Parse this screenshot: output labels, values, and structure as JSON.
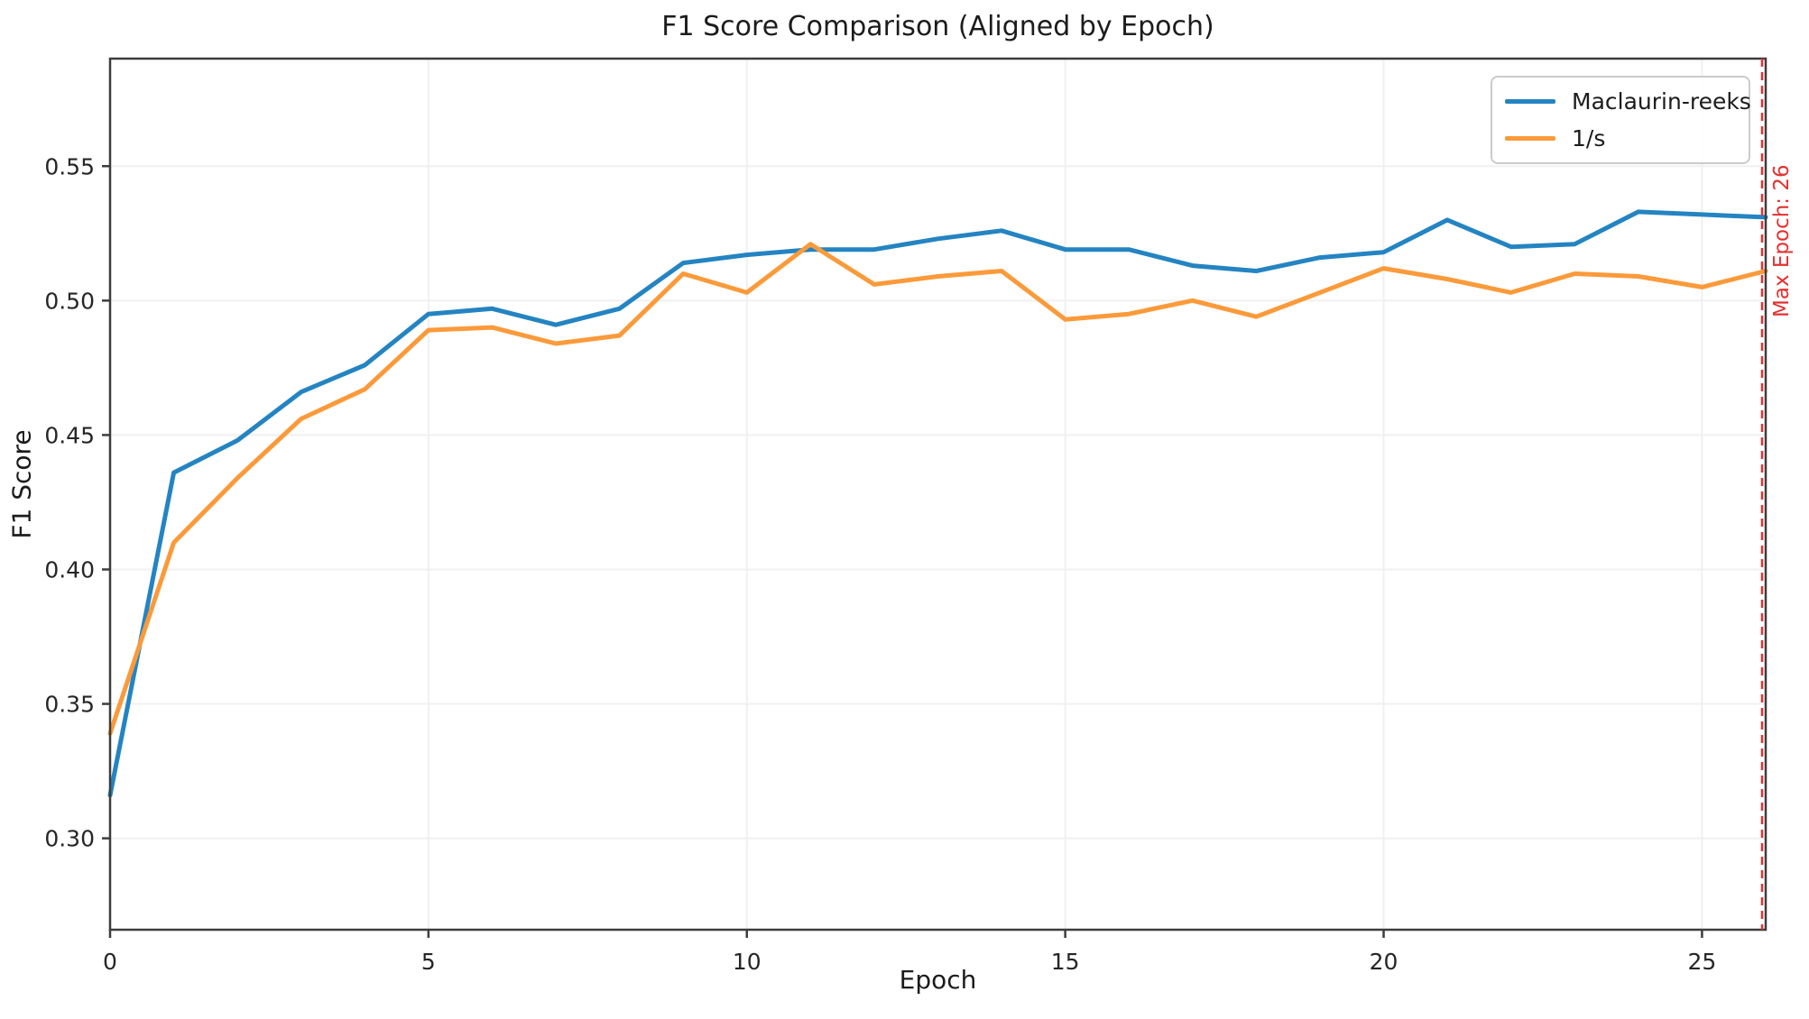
{
  "chart_data": {
    "type": "line",
    "title": "F1 Score Comparison (Aligned by Epoch)",
    "xlabel": "Epoch",
    "ylabel": "F1 Score",
    "x": [
      0,
      1,
      2,
      3,
      4,
      5,
      6,
      7,
      8,
      9,
      10,
      11,
      12,
      13,
      14,
      15,
      16,
      17,
      18,
      19,
      20,
      21,
      22,
      23,
      24,
      25,
      26
    ],
    "series": [
      {
        "name": "Maclaurin-reeks",
        "color": "#2484c2",
        "values": [
          0.316,
          0.436,
          0.448,
          0.466,
          0.476,
          0.495,
          0.497,
          0.491,
          0.497,
          0.514,
          0.517,
          0.519,
          0.519,
          0.523,
          0.526,
          0.519,
          0.519,
          0.513,
          0.511,
          0.516,
          0.518,
          0.53,
          0.52,
          0.521,
          0.533,
          0.532,
          0.531
        ]
      },
      {
        "name": "1/s",
        "color": "#fb9a3a",
        "values": [
          0.339,
          0.41,
          0.434,
          0.456,
          0.467,
          0.489,
          0.49,
          0.484,
          0.487,
          0.51,
          0.503,
          0.521,
          0.506,
          0.509,
          0.511,
          0.493,
          0.495,
          0.5,
          0.494,
          0.503,
          0.512,
          0.508,
          0.503,
          0.51,
          0.509,
          0.505,
          0.511
        ]
      }
    ],
    "xlim": [
      0,
      26
    ],
    "ylim": [
      0.266,
      0.59
    ],
    "xticks": [
      0,
      5,
      10,
      15,
      20,
      25
    ],
    "xtick_labels": [
      "0",
      "5",
      "10",
      "15",
      "20",
      "25"
    ],
    "yticks": [
      0.3,
      0.35,
      0.4,
      0.45,
      0.5,
      0.55
    ],
    "ytick_labels": [
      "0.30",
      "0.35",
      "0.40",
      "0.45",
      "0.50",
      "0.55"
    ],
    "grid": true,
    "legend_position": "upper right",
    "annotation": {
      "text": "Max Epoch: 26",
      "x": 26,
      "color": "#e53030",
      "line_style": "dashed"
    },
    "colors": {
      "axis_text": "#262626",
      "spine": "#3d3d3d",
      "grid": "#f0f0f0"
    }
  }
}
